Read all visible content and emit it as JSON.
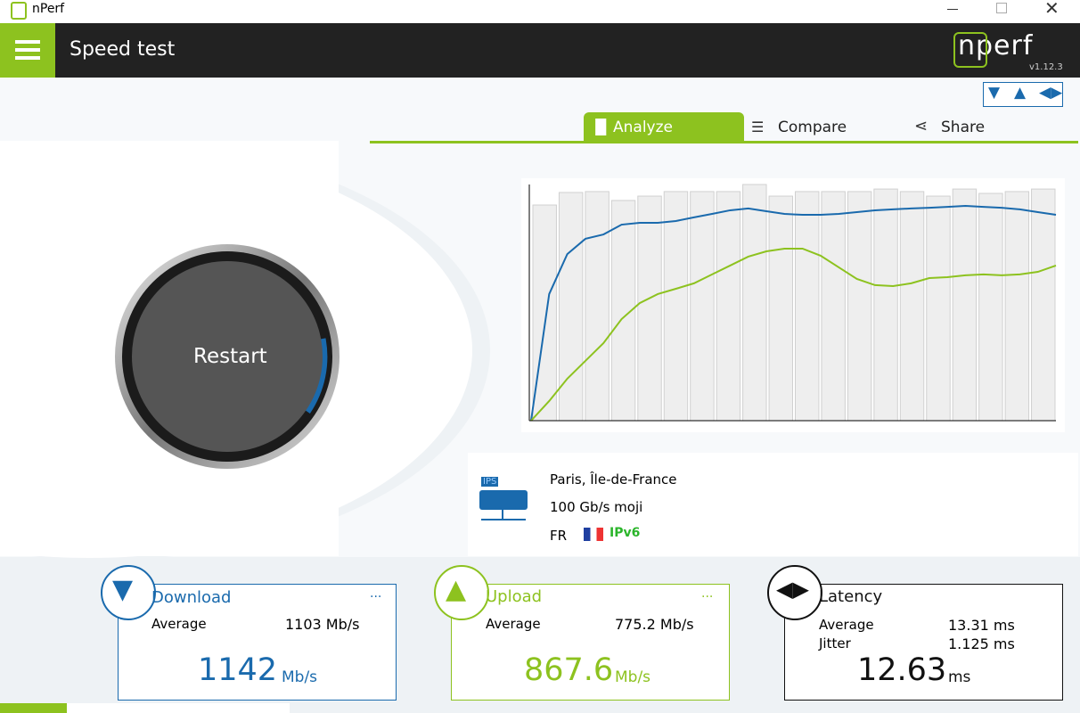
{
  "window": {
    "title": "nPerf"
  },
  "header": {
    "title": "Speed test",
    "logo": "nperf",
    "version": "v1.12.3"
  },
  "tabs": [
    "Analyze",
    "Compare",
    "Share"
  ],
  "button": "Restart",
  "chart": {
    "type": "line",
    "ylim": [
      0,
      1300
    ],
    "bars": {
      "color": "#eeeeee",
      "values": [
        1187,
        1256,
        1261,
        1212,
        1236,
        1261,
        1261,
        1261,
        1300,
        1236,
        1261,
        1261,
        1261,
        1275,
        1261,
        1236,
        1275,
        1251,
        1261,
        1275
      ]
    },
    "series": [
      {
        "color": "#1a6aad",
        "values": [
          0,
          697,
          917,
          1001,
          1025,
          1079,
          1089,
          1089,
          1099,
          1119,
          1138,
          1158,
          1168,
          1153,
          1138,
          1133,
          1133,
          1138,
          1148,
          1158,
          1163,
          1168,
          1172,
          1177,
          1182,
          1177,
          1172,
          1163,
          1148,
          1133
        ]
      },
      {
        "color": "#8dc21f",
        "values": [
          0,
          108,
          231,
          329,
          427,
          559,
          647,
          697,
          726,
          756,
          805,
          854,
          903,
          932,
          947,
          947,
          908,
          844,
          780,
          746,
          741,
          756,
          785,
          790,
          800,
          805,
          800,
          805,
          819,
          854
        ]
      }
    ]
  },
  "server": {
    "badge": "IPS",
    "location": "Paris, Île-de-France",
    "name": "100 Gb/s moji",
    "country": "FR",
    "ip": "IPv6"
  },
  "cards": {
    "download": {
      "title": "Download",
      "more": "...",
      "average_label": "Average",
      "average": "1103 Mb/s",
      "value": "1142",
      "unit": "Mb/s"
    },
    "upload": {
      "title": "Upload",
      "more": "...",
      "average_label": "Average",
      "average": "775.2 Mb/s",
      "value": "867.6",
      "unit": "Mb/s"
    },
    "latency": {
      "title": "Latency",
      "average_label": "Average",
      "average": "13.31 ms",
      "jitter_label": "Jitter",
      "jitter": "1.125 ms",
      "value": "12.63",
      "unit": "ms"
    }
  }
}
